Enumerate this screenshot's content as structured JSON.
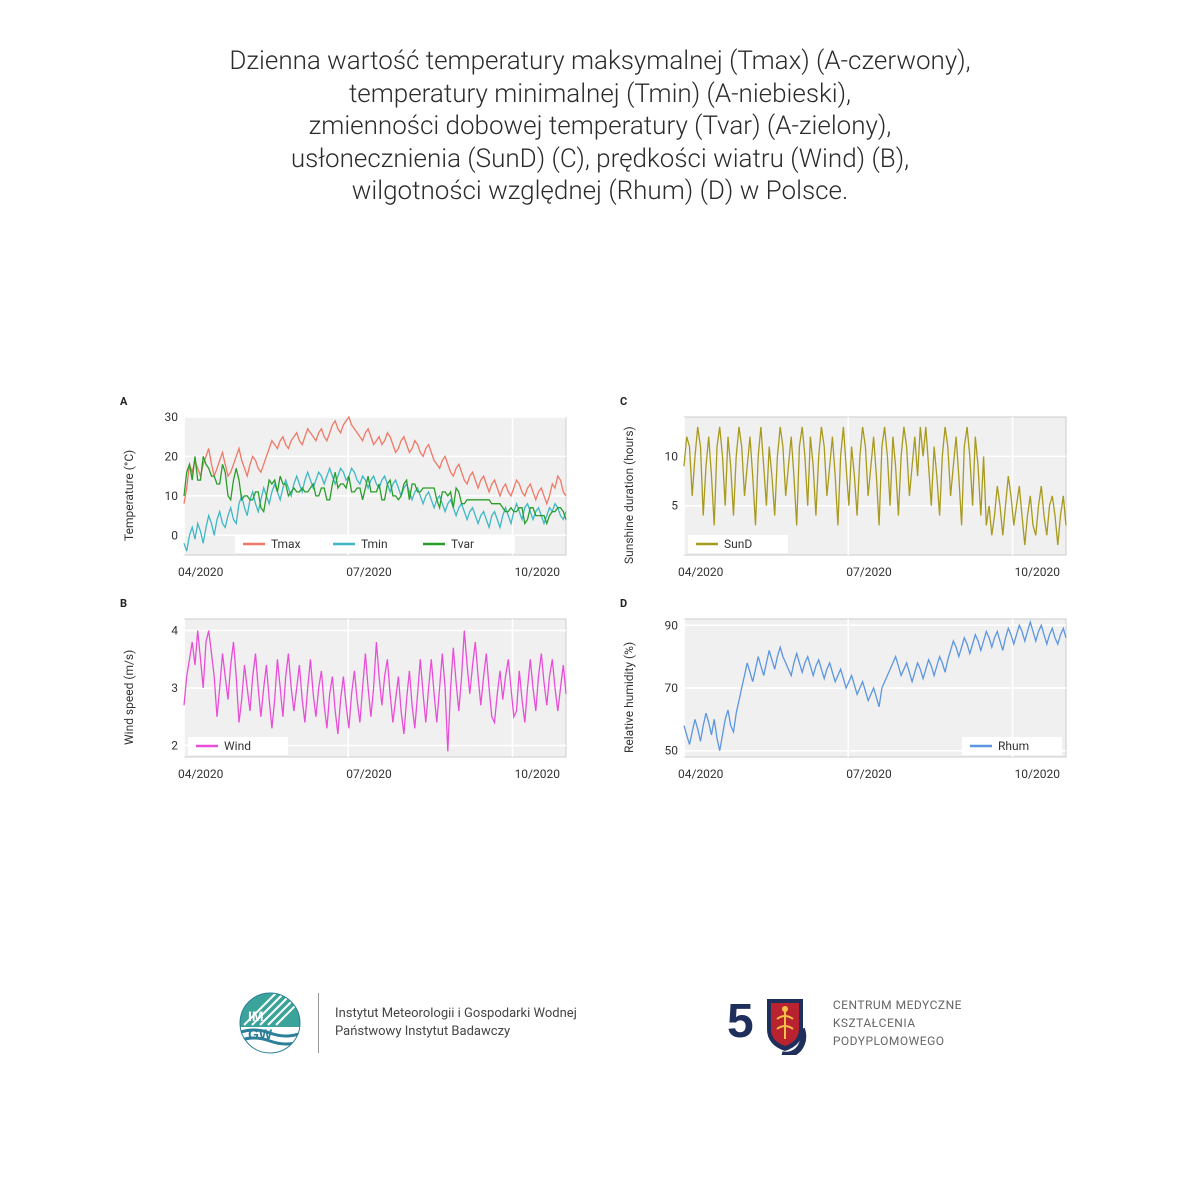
{
  "title_lines": [
    "Dzienna wartość temperatury maksymalnej (Tmax) (A-czerwony),",
    "temperatury minimalnej (Tmin) (A-niebieski),",
    "zmienności dobowej temperatury (Tvar) (A-zielony),",
    "usłonecznienia (SunD) (C), prędkości wiatru (Wind) (B),",
    "wilgotności względnej (Rhum) (D) w Polsce."
  ],
  "title_fontsize": 26,
  "x_ticks": [
    "04/2020",
    "07/2020",
    "10/2020"
  ],
  "panel_bg": "#f0f0f0",
  "panel_border": "#cccccc",
  "grid_color": "#ffffff",
  "line_width": 1.3,
  "panelA": {
    "letter": "A",
    "ylabel": "Temperature (°C)",
    "ylim": [
      -5,
      30
    ],
    "yticks": [
      0,
      10,
      20,
      30
    ],
    "legend_pos": "bottom-inside",
    "series": [
      {
        "name": "Tmax",
        "color": "#f07866",
        "data": [
          8,
          12,
          18,
          16,
          19,
          17,
          15,
          18,
          20,
          22,
          18,
          15,
          17,
          19,
          21,
          18,
          15,
          16,
          18,
          20,
          22,
          19,
          17,
          15,
          18,
          20,
          19,
          17,
          16,
          18,
          20,
          22,
          24,
          23,
          22,
          24,
          25,
          23,
          22,
          24,
          25,
          26,
          24,
          23,
          25,
          27,
          26,
          25,
          24,
          26,
          27,
          25,
          24,
          26,
          28,
          29,
          27,
          26,
          28,
          29,
          30,
          28,
          27,
          26,
          25,
          24,
          26,
          27,
          25,
          23,
          24,
          25,
          23,
          24,
          26,
          25,
          23,
          21,
          22,
          24,
          25,
          23,
          21,
          22,
          24,
          23,
          21,
          20,
          22,
          23,
          21,
          19,
          18,
          17,
          19,
          20,
          18,
          16,
          15,
          17,
          18,
          16,
          14,
          13,
          15,
          16,
          14,
          12,
          14,
          15,
          13,
          11,
          13,
          14,
          12,
          10,
          12,
          13,
          11,
          10,
          12,
          14,
          13,
          11,
          10,
          12,
          13,
          11,
          9,
          11,
          12,
          10,
          8,
          10,
          13,
          12,
          15,
          14,
          11,
          10
        ]
      },
      {
        "name": "Tmin",
        "color": "#3fb8c5",
        "data": [
          -2,
          -4,
          0,
          2,
          -1,
          3,
          1,
          -2,
          2,
          5,
          3,
          0,
          4,
          6,
          3,
          2,
          5,
          7,
          4,
          3,
          8,
          10,
          7,
          5,
          9,
          11,
          8,
          6,
          9,
          12,
          10,
          8,
          11,
          13,
          11,
          9,
          12,
          14,
          12,
          10,
          13,
          15,
          13,
          11,
          14,
          16,
          14,
          12,
          14,
          16,
          15,
          13,
          15,
          17,
          15,
          13,
          15,
          17,
          16,
          14,
          15,
          17,
          16,
          14,
          13,
          15,
          14,
          12,
          14,
          15,
          13,
          12,
          14,
          15,
          13,
          11,
          13,
          14,
          12,
          10,
          12,
          13,
          11,
          9,
          11,
          12,
          10,
          8,
          10,
          11,
          9,
          7,
          9,
          10,
          8,
          6,
          8,
          9,
          7,
          5,
          7,
          8,
          6,
          4,
          6,
          7,
          5,
          3,
          5,
          6,
          4,
          2,
          5,
          6,
          4,
          2,
          5,
          7,
          5,
          3,
          6,
          8,
          6,
          4,
          7,
          8,
          6,
          4,
          6,
          7,
          5,
          3,
          5,
          7,
          6,
          8,
          7,
          5,
          4,
          6
        ]
      },
      {
        "name": "Tvar",
        "color": "#2a9d2a",
        "data": [
          10,
          16,
          18,
          14,
          20,
          14,
          14,
          20,
          18,
          17,
          15,
          15,
          13,
          13,
          18,
          16,
          10,
          9,
          14,
          17,
          14,
          9,
          10,
          10,
          9,
          9,
          11,
          11,
          7,
          6,
          10,
          14,
          13,
          14,
          11,
          15,
          13,
          13,
          10,
          11,
          12,
          11,
          11,
          12,
          11,
          11,
          12,
          13,
          10,
          10,
          12,
          12,
          9,
          9,
          13,
          16,
          12,
          13,
          13,
          12,
          15,
          11,
          11,
          12,
          12,
          9,
          12,
          15,
          11,
          11,
          11,
          13,
          9,
          9,
          13,
          14,
          10,
          10,
          9,
          10,
          13,
          14,
          9,
          13,
          13,
          11,
          11,
          12,
          12,
          12,
          12,
          12,
          9,
          7,
          11,
          11,
          10,
          11,
          7,
          12,
          11,
          8,
          8,
          9,
          9,
          9,
          9,
          9,
          9,
          9,
          9,
          9,
          8,
          8,
          8,
          8,
          7,
          6,
          6,
          7,
          6,
          6,
          7,
          7,
          3,
          4,
          7,
          7,
          5,
          5,
          5,
          5,
          3,
          5,
          6,
          6,
          7,
          7,
          6,
          4
        ]
      }
    ]
  },
  "panelB": {
    "letter": "B",
    "ylabel": "Wind speed (m/s)",
    "ylim": [
      1.8,
      4.2
    ],
    "yticks": [
      2.0,
      3.0,
      4.0
    ],
    "legend_pos": "bottom-left-inside",
    "series": [
      {
        "name": "Wind",
        "color": "#e84fd8",
        "data": [
          2.7,
          3.2,
          3.5,
          3.8,
          3.4,
          4.0,
          3.5,
          3.0,
          3.8,
          4.0,
          3.6,
          3.2,
          2.5,
          3.0,
          3.6,
          3.2,
          2.8,
          3.4,
          3.8,
          3.2,
          2.4,
          2.8,
          3.4,
          3.0,
          2.6,
          3.2,
          3.6,
          3.0,
          2.5,
          3.0,
          3.4,
          2.8,
          2.3,
          2.8,
          3.5,
          3.0,
          2.5,
          3.2,
          3.6,
          3.0,
          2.6,
          3.0,
          3.4,
          2.8,
          2.4,
          3.0,
          3.5,
          2.9,
          2.5,
          3.0,
          3.3,
          2.7,
          2.3,
          2.9,
          3.2,
          2.6,
          2.2,
          2.8,
          3.2,
          2.7,
          2.3,
          2.9,
          3.3,
          2.8,
          2.4,
          3.0,
          3.6,
          3.0,
          2.5,
          3.0,
          3.8,
          3.2,
          2.7,
          3.2,
          3.5,
          2.9,
          2.4,
          2.8,
          3.2,
          2.6,
          2.2,
          2.8,
          3.3,
          2.7,
          2.3,
          2.9,
          3.5,
          2.9,
          2.4,
          3.0,
          3.5,
          2.9,
          2.4,
          3.0,
          3.6,
          3.0,
          1.9,
          3.0,
          3.7,
          3.1,
          2.6,
          3.2,
          4.0,
          3.4,
          2.9,
          3.4,
          3.8,
          3.2,
          2.7,
          3.2,
          3.6,
          3.0,
          2.5,
          2.4,
          2.9,
          3.3,
          2.8,
          3.2,
          3.5,
          3.0,
          2.5,
          2.6,
          3.3,
          2.8,
          2.4,
          3.0,
          3.5,
          3.0,
          2.6,
          3.2,
          3.6,
          3.1,
          2.7,
          3.2,
          3.5,
          3.0,
          2.6,
          3.0,
          3.4,
          2.9
        ]
      }
    ]
  },
  "panelC": {
    "letter": "C",
    "ylabel": "Sunshine duration (hours)",
    "ylim": [
      0,
      14
    ],
    "yticks": [
      5,
      10
    ],
    "legend_pos": "bottom-left-inside",
    "series": [
      {
        "name": "SunD",
        "color": "#a89a1e",
        "data": [
          9,
          12,
          11,
          6,
          10,
          13,
          11,
          4,
          9,
          12,
          8,
          3,
          11,
          13,
          10,
          5,
          12,
          9,
          4,
          10,
          13,
          11,
          6,
          9,
          12,
          8,
          3,
          10,
          13,
          9,
          5,
          11,
          8,
          4,
          10,
          13,
          11,
          6,
          9,
          12,
          8,
          3,
          11,
          13,
          10,
          5,
          12,
          9,
          4,
          10,
          13,
          11,
          6,
          9,
          12,
          8,
          3,
          10,
          13,
          9,
          5,
          11,
          8,
          4,
          10,
          13,
          11,
          6,
          9,
          12,
          8,
          3,
          11,
          13,
          10,
          5,
          12,
          9,
          4,
          10,
          13,
          11,
          6,
          9,
          12,
          8,
          13,
          10,
          13,
          9,
          5,
          11,
          8,
          4,
          10,
          13,
          11,
          6,
          9,
          12,
          8,
          3,
          11,
          13,
          10,
          5,
          12,
          9,
          4,
          10,
          3,
          5,
          2,
          4,
          7,
          5,
          2,
          5,
          8,
          6,
          3,
          5,
          7,
          4,
          1,
          4,
          6,
          3,
          2,
          5,
          7,
          4,
          2,
          5,
          6,
          4,
          1,
          4,
          6,
          3
        ]
      }
    ]
  },
  "panelD": {
    "letter": "D",
    "ylabel": "Relative humidity (%)",
    "ylim": [
      48,
      92
    ],
    "yticks": [
      50,
      70,
      90
    ],
    "legend_pos": "bottom-right-inside",
    "series": [
      {
        "name": "Rhum",
        "color": "#5c96e0",
        "data": [
          58,
          55,
          52,
          56,
          60,
          57,
          53,
          58,
          62,
          59,
          55,
          60,
          54,
          50,
          55,
          60,
          63,
          58,
          56,
          62,
          66,
          70,
          74,
          78,
          75,
          72,
          76,
          80,
          77,
          74,
          78,
          82,
          79,
          76,
          80,
          83,
          80,
          78,
          76,
          74,
          78,
          81,
          78,
          75,
          78,
          80,
          77,
          74,
          77,
          79,
          76,
          73,
          76,
          78,
          75,
          72,
          74,
          76,
          73,
          70,
          72,
          74,
          71,
          68,
          70,
          72,
          69,
          66,
          68,
          70,
          67,
          64,
          70,
          72,
          74,
          76,
          78,
          80,
          77,
          74,
          76,
          78,
          75,
          72,
          75,
          78,
          76,
          73,
          76,
          79,
          77,
          74,
          77,
          80,
          78,
          75,
          79,
          82,
          85,
          83,
          80,
          83,
          86,
          84,
          81,
          84,
          87,
          85,
          82,
          85,
          88,
          86,
          83,
          86,
          88,
          85,
          82,
          86,
          89,
          87,
          84,
          87,
          90,
          88,
          85,
          88,
          91,
          88,
          85,
          88,
          90,
          87,
          84,
          87,
          89,
          86,
          84,
          87,
          89,
          86
        ]
      }
    ]
  },
  "footer": {
    "imgw": {
      "line1": "Instytut Meteorologii i Gospodarki Wodnej",
      "line2": "Państwowy Instytut Badawczy",
      "logo_colors": {
        "top": "#3aa39a",
        "stripes": "#ffffff",
        "waves": "#2b7f98"
      }
    },
    "cmkp": {
      "line1": "CENTRUM MEDYCZNE",
      "line2": "KSZTAŁCENIA",
      "line3": "PODYPLOMOWEGO",
      "fifty_color": "#1e2f5c",
      "shield_border": "#1e2f5c",
      "shield_red": "#b8232f"
    }
  }
}
